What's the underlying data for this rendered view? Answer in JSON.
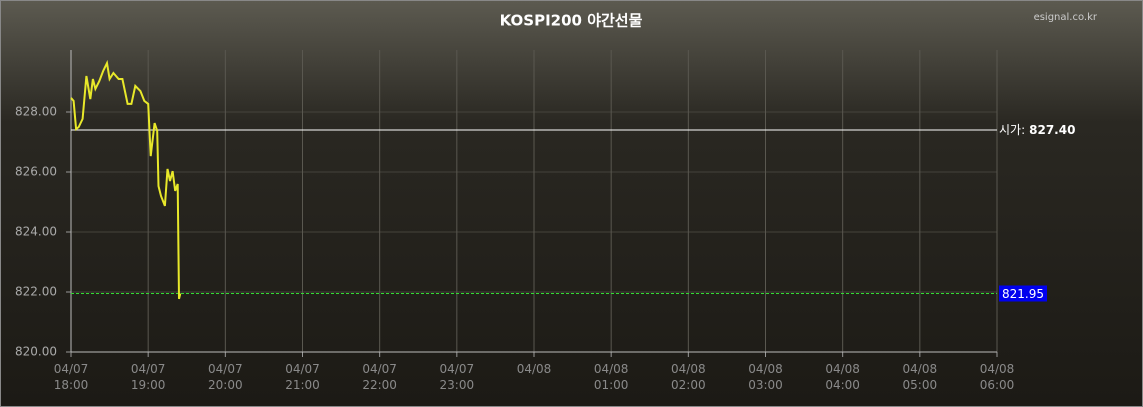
{
  "chart_data": {
    "type": "line",
    "title": "KOSPI200 야간선물",
    "source": "esignal.co.kr",
    "x": [
      "04/07 18:00",
      "04/07 18:02",
      "04/07 18:04",
      "04/07 18:06",
      "04/07 18:09",
      "04/07 18:12",
      "04/07 18:15",
      "04/07 18:17",
      "04/07 18:19",
      "04/07 18:22",
      "04/07 18:25",
      "04/07 18:28",
      "04/07 18:30",
      "04/07 18:33",
      "04/07 18:37",
      "04/07 18:40",
      "04/07 18:44",
      "04/07 18:47",
      "04/07 18:50",
      "04/07 18:54",
      "04/07 18:57",
      "04/07 19:00",
      "04/07 19:02",
      "04/07 19:05",
      "04/07 19:07",
      "04/07 19:08",
      "04/07 19:10",
      "04/07 19:13",
      "04/07 19:15",
      "04/07 19:17",
      "04/07 19:19",
      "04/07 19:21",
      "04/07 19:23",
      "04/07 19:24",
      "04/07 19:25"
    ],
    "values": [
      828.47,
      828.37,
      827.43,
      827.5,
      827.77,
      829.2,
      828.43,
      829.1,
      828.77,
      829.03,
      829.37,
      829.63,
      829.1,
      829.3,
      829.1,
      829.1,
      828.27,
      828.27,
      828.87,
      828.7,
      828.37,
      828.27,
      826.53,
      827.63,
      827.37,
      825.53,
      825.2,
      824.87,
      826.1,
      825.7,
      826.03,
      825.37,
      825.6,
      821.77,
      821.95
    ],
    "color": "#e8e82a",
    "xlim": [
      "04/07 18:00",
      "04/08 06:00"
    ],
    "xticks": [
      "04/07 18:00",
      "04/07 19:00",
      "04/07 20:00",
      "04/07 21:00",
      "04/07 22:00",
      "04/07 23:00",
      {
        "value": "04/08 00:00",
        "label": "04/08"
      },
      "04/08 01:00",
      "04/08 02:00",
      "04/08 03:00",
      "04/08 04:00",
      "04/08 05:00",
      "04/08 06:00"
    ],
    "ylim": [
      820,
      830
    ],
    "yticks": [
      {
        "value": 820,
        "label": "820.00"
      },
      {
        "value": 822,
        "label": "822.00"
      },
      {
        "value": 824,
        "label": "824.00"
      },
      {
        "value": 826,
        "label": "826.00"
      },
      {
        "value": 828,
        "label": "828.00"
      }
    ],
    "grid": true,
    "reference_lines": [
      {
        "label": "시가:",
        "value": 827.4,
        "value_label": "827.40",
        "color": "#ffffff"
      },
      {
        "value": 821.95,
        "color": "#33dd33"
      }
    ]
  }
}
